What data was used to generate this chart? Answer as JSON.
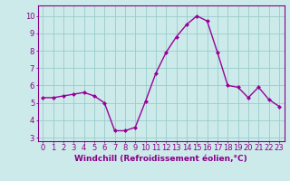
{
  "x": [
    0,
    1,
    2,
    3,
    4,
    5,
    6,
    7,
    8,
    9,
    10,
    11,
    12,
    13,
    14,
    15,
    16,
    17,
    18,
    19,
    20,
    21,
    22,
    23
  ],
  "y": [
    5.3,
    5.3,
    5.4,
    5.5,
    5.6,
    5.4,
    5.0,
    3.4,
    3.4,
    3.6,
    5.1,
    6.7,
    7.9,
    8.8,
    9.5,
    10.0,
    9.7,
    7.9,
    6.0,
    5.9,
    5.3,
    5.9,
    5.2,
    4.8
  ],
  "line_color": "#990099",
  "marker": "D",
  "marker_size": 2.0,
  "bg_color": "#cceaea",
  "grid_color": "#99cccc",
  "xlabel": "Windchill (Refroidissement éolien,°C)",
  "xlabel_fontsize": 6.5,
  "xtick_labels": [
    "0",
    "1",
    "2",
    "3",
    "4",
    "5",
    "6",
    "7",
    "8",
    "9",
    "10",
    "11",
    "12",
    "13",
    "14",
    "15",
    "16",
    "17",
    "18",
    "19",
    "20",
    "21",
    "22",
    "23"
  ],
  "ytick_labels": [
    "3",
    "4",
    "5",
    "6",
    "7",
    "8",
    "9",
    "10"
  ],
  "yticks": [
    3,
    4,
    5,
    6,
    7,
    8,
    9,
    10
  ],
  "ylim": [
    2.8,
    10.6
  ],
  "xlim": [
    -0.5,
    23.5
  ],
  "tick_fontsize": 6.0,
  "tick_color": "#880088",
  "spine_color": "#880088",
  "line_width": 1.0
}
